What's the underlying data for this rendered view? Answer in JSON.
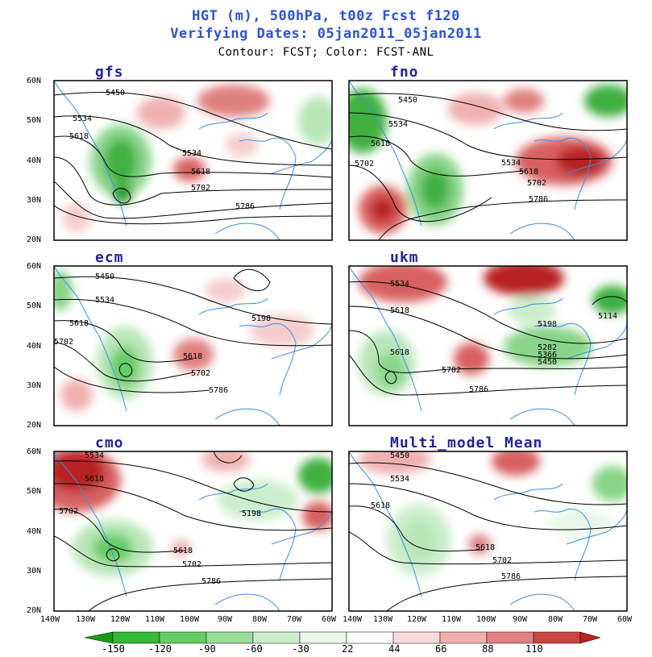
{
  "header": {
    "title_line1": "HGT (m), 500hPa, t00z Fcst f120",
    "title_line2": "Verifying Dates: 05jan2011_05jan2011",
    "title_line3": "Contour: FCST; Color: FCST-ANL"
  },
  "axes": {
    "lat_ticks": [
      "60N",
      "50N",
      "40N",
      "30N",
      "20N"
    ],
    "lon_ticks_left": [
      "140W",
      "130W",
      "120W",
      "110W",
      "100W",
      "90W",
      "80W",
      "70W",
      "60W"
    ],
    "lon_ticks_right": [
      "140W",
      "130W",
      "120W",
      "110W",
      "100W",
      "90W",
      "80W",
      "70W",
      "60W"
    ]
  },
  "panels": [
    {
      "name": "gfs",
      "labels": [
        "5450",
        "5534",
        "5618",
        "5534",
        "5618",
        "5702",
        "5786"
      ]
    },
    {
      "name": "fno",
      "labels": [
        "5450",
        "5534",
        "5618",
        "5702",
        "5534",
        "5618",
        "5702",
        "5786"
      ]
    },
    {
      "name": "ecm",
      "labels": [
        "5450",
        "5534",
        "5618",
        "5702",
        "5198",
        "5618",
        "5702",
        "5786"
      ]
    },
    {
      "name": "ukm",
      "labels": [
        "5534",
        "5618",
        "5618",
        "5198",
        "5114",
        "5282",
        "5366",
        "5450",
        "5702",
        "5786"
      ]
    },
    {
      "name": "cmo",
      "labels": [
        "5534",
        "5618",
        "5702",
        "5198",
        "5618",
        "5702",
        "5786"
      ]
    },
    {
      "name": "Multi_model Mean",
      "labels": [
        "5450",
        "5534",
        "5618",
        "5618",
        "5702",
        "5786"
      ]
    }
  ],
  "colorbar": {
    "labels": [
      "-150",
      "-120",
      "-90",
      "-60",
      "-30",
      "22",
      "44",
      "66",
      "88",
      "110"
    ],
    "colors": [
      "#1a9a1a",
      "#33bb33",
      "#66cc66",
      "#99dd99",
      "#cceecc",
      "#eaf6ea",
      "#ffffff",
      "#f8dada",
      "#f0b0b0",
      "#e08080",
      "#cc4444",
      "#b82222"
    ]
  }
}
